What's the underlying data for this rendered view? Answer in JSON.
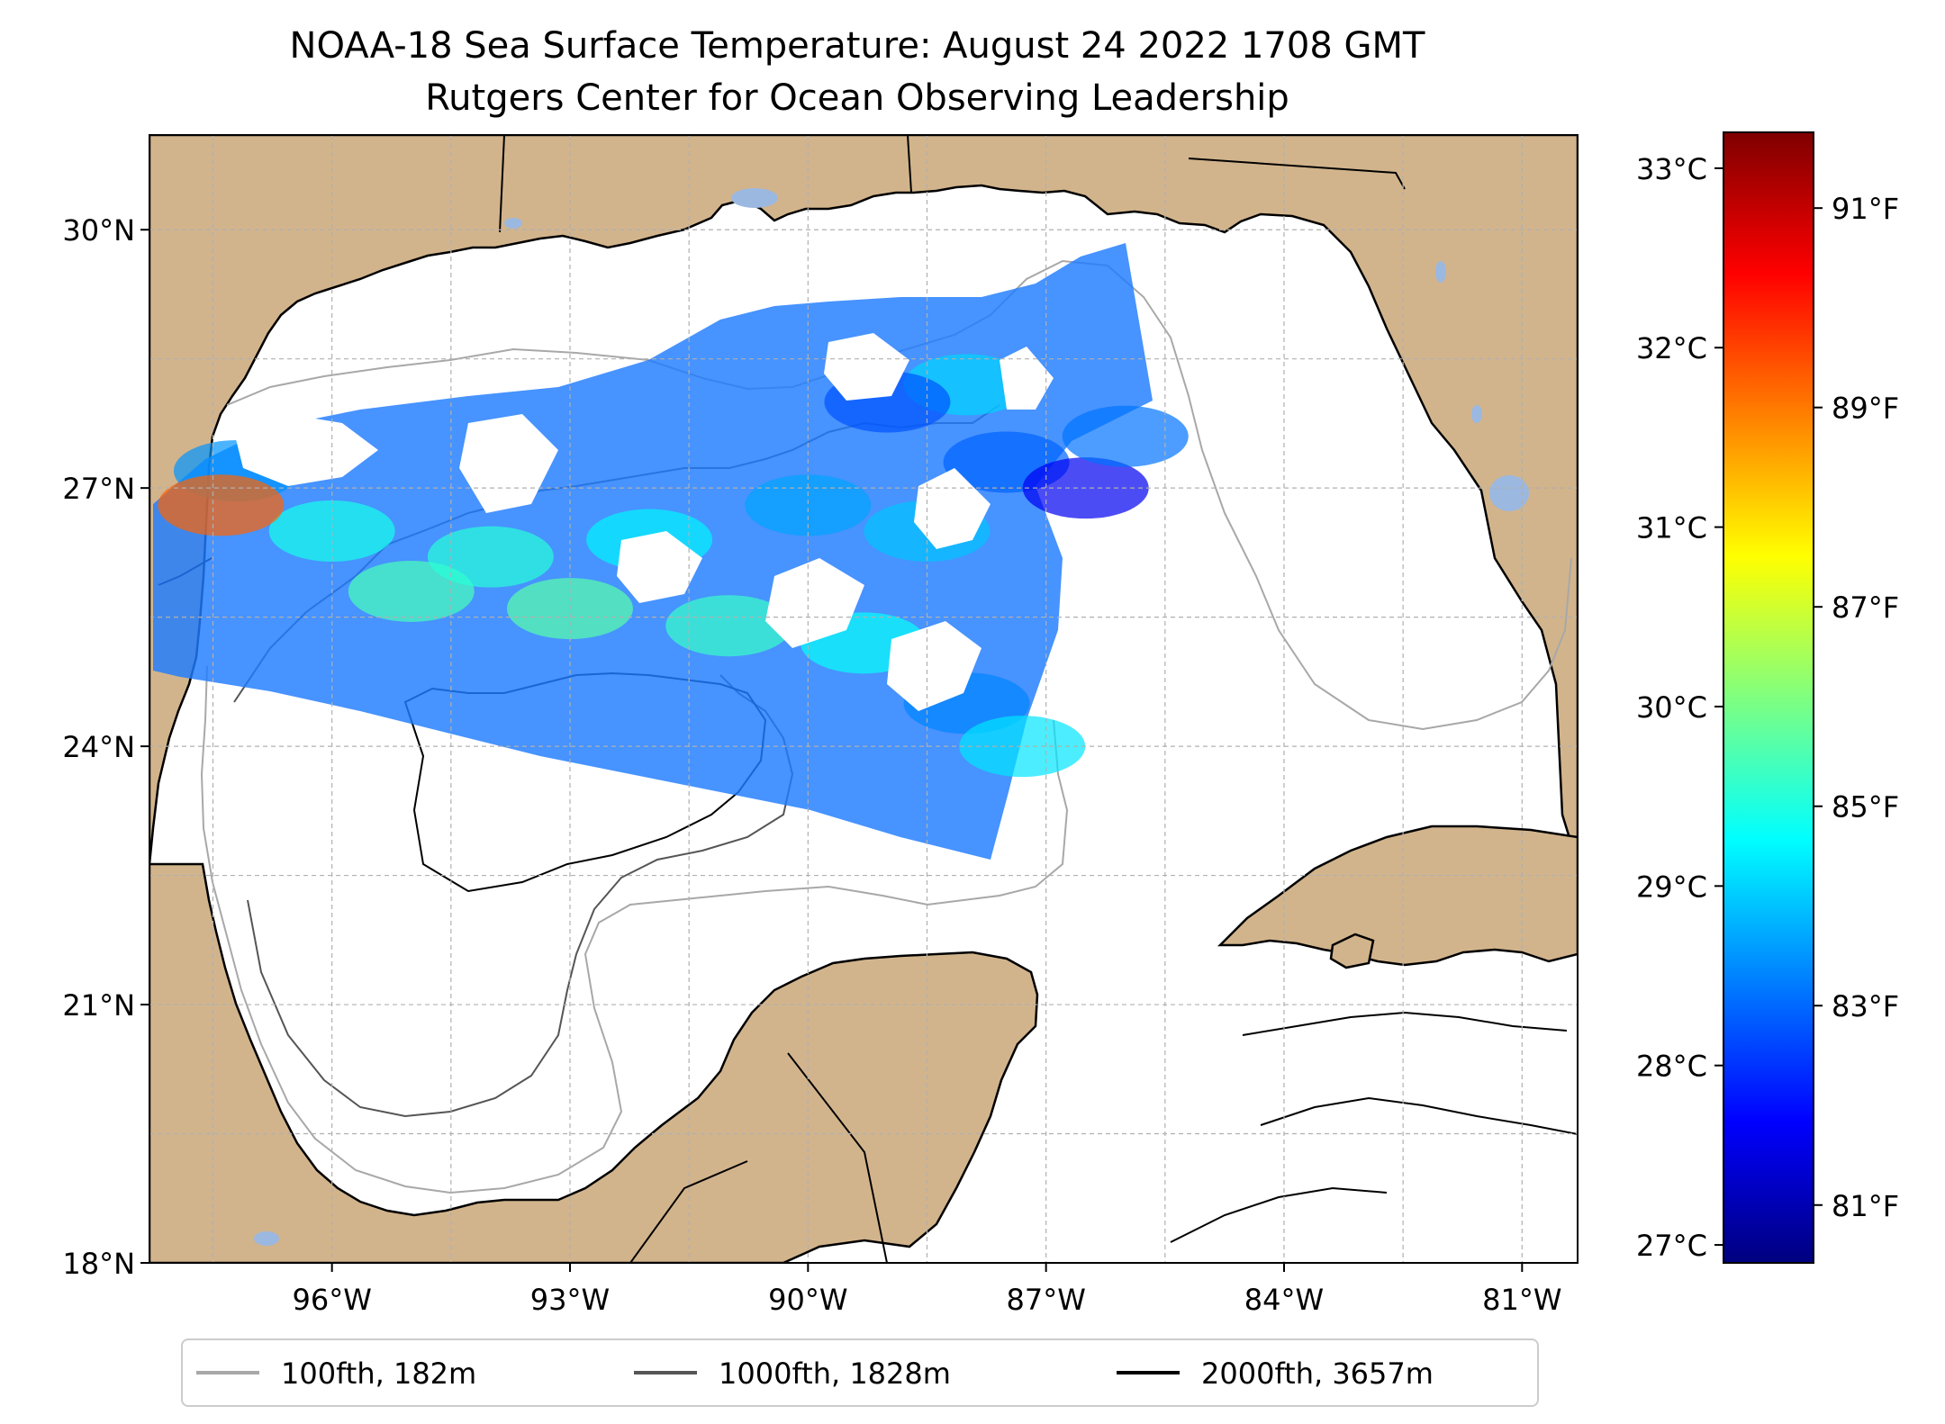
{
  "title": {
    "line1": "NOAA-18 Sea Surface Temperature: August 24 2022 1708 GMT",
    "line2": "Rutgers Center for Ocean Observing Leadership"
  },
  "map": {
    "lon_range": [
      -98.3,
      -80.3
    ],
    "lat_range": [
      18.0,
      31.1
    ],
    "x_ticks": [
      {
        "value": -96,
        "label": "96°W"
      },
      {
        "value": -93,
        "label": "93°W"
      },
      {
        "value": -90,
        "label": "90°W"
      },
      {
        "value": -87,
        "label": "87°W"
      },
      {
        "value": -84,
        "label": "84°W"
      },
      {
        "value": -81,
        "label": "81°W"
      }
    ],
    "y_ticks": [
      {
        "value": 18,
        "label": "18°N"
      },
      {
        "value": 21,
        "label": "21°N"
      },
      {
        "value": 24,
        "label": "24°N"
      },
      {
        "value": 27,
        "label": "27°N"
      },
      {
        "value": 30,
        "label": "30°N"
      }
    ],
    "gridlines": true,
    "colors": {
      "land": "#d2b48c",
      "lake": "#9bb8e0",
      "coast": "#000000",
      "grid": "#b0b0b0"
    }
  },
  "colorbar": {
    "colormap": "jet",
    "range_c": [
      26.9,
      33.2
    ],
    "celsius_ticks": [
      {
        "value": 27,
        "label": "27°C"
      },
      {
        "value": 28,
        "label": "28°C"
      },
      {
        "value": 29,
        "label": "29°C"
      },
      {
        "value": 30,
        "label": "30°C"
      },
      {
        "value": 31,
        "label": "31°C"
      },
      {
        "value": 32,
        "label": "32°C"
      },
      {
        "value": 33,
        "label": "33°C"
      }
    ],
    "fahrenheit_ticks": [
      {
        "value": 81,
        "label": "81°F"
      },
      {
        "value": 83,
        "label": "83°F"
      },
      {
        "value": 85,
        "label": "85°F"
      },
      {
        "value": 87,
        "label": "87°F"
      },
      {
        "value": 89,
        "label": "89°F"
      },
      {
        "value": 91,
        "label": "91°F"
      }
    ]
  },
  "legend": {
    "entries": [
      {
        "label": "100fth, 182m",
        "color": "#a8a8a8"
      },
      {
        "label": "1000fth, 1828m",
        "color": "#555555"
      },
      {
        "label": "2000fth, 3657m",
        "color": "#000000"
      }
    ]
  },
  "swath_samples_c": [
    {
      "lon": -97.2,
      "lat": 27.2,
      "temp": 28.6
    },
    {
      "lon": -96.0,
      "lat": 26.5,
      "temp": 29.4
    },
    {
      "lon": -95.0,
      "lat": 25.8,
      "temp": 29.7
    },
    {
      "lon": -94.0,
      "lat": 26.2,
      "temp": 29.5
    },
    {
      "lon": -93.0,
      "lat": 25.6,
      "temp": 29.8
    },
    {
      "lon": -92.0,
      "lat": 26.4,
      "temp": 29.2
    },
    {
      "lon": -91.0,
      "lat": 25.4,
      "temp": 29.6
    },
    {
      "lon": -90.0,
      "lat": 26.8,
      "temp": 28.7
    },
    {
      "lon": -89.3,
      "lat": 25.2,
      "temp": 29.3
    },
    {
      "lon": -88.5,
      "lat": 26.5,
      "temp": 28.9
    },
    {
      "lon": -88.0,
      "lat": 24.5,
      "temp": 28.5
    },
    {
      "lon": -87.5,
      "lat": 27.3,
      "temp": 28.3
    },
    {
      "lon": -86.5,
      "lat": 27.0,
      "temp": 27.6
    },
    {
      "lon": -86.0,
      "lat": 27.6,
      "temp": 28.4
    },
    {
      "lon": -87.3,
      "lat": 24.0,
      "temp": 29.1
    },
    {
      "lon": -88.0,
      "lat": 28.2,
      "temp": 29.0
    },
    {
      "lon": -89.0,
      "lat": 28.0,
      "temp": 28.2
    },
    {
      "lon": -97.4,
      "lat": 26.8,
      "temp": 31.8
    }
  ]
}
